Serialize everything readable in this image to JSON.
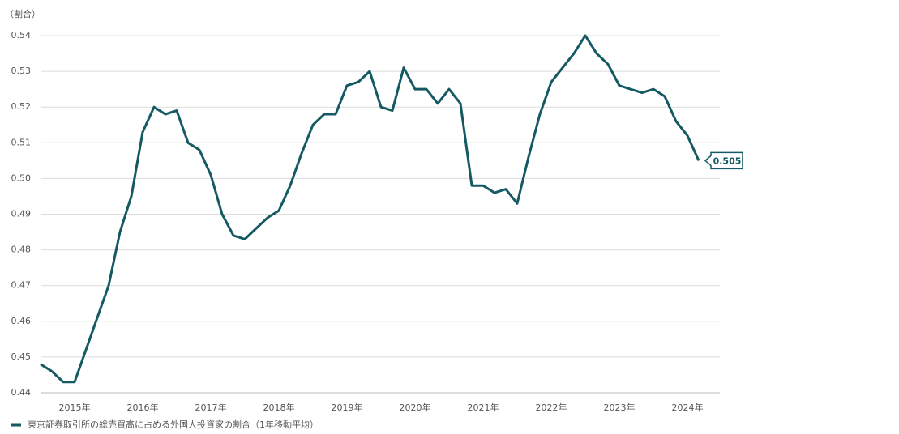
{
  "chart_data": {
    "type": "line",
    "y_label": "（割合）",
    "categories": [
      null,
      null,
      null,
      "2015年",
      null,
      null,
      null,
      null,
      null,
      "2016年",
      null,
      null,
      null,
      null,
      null,
      "2017年",
      null,
      null,
      null,
      null,
      null,
      "2018年",
      null,
      null,
      null,
      null,
      null,
      "2019年",
      null,
      null,
      null,
      null,
      null,
      "2020年",
      null,
      null,
      null,
      null,
      null,
      "2021年",
      null,
      null,
      null,
      null,
      null,
      "2022年",
      null,
      null,
      null,
      null,
      null,
      "2023年",
      null,
      null,
      null,
      null,
      null,
      "2024年",
      null
    ],
    "series": [
      {
        "name": "東京証券取引所の総売買高に占める外国人投資家の割合（1年移動平均）",
        "color": "#155a63",
        "values": [
          0.448,
          0.446,
          0.443,
          0.443,
          0.452,
          0.461,
          0.47,
          0.485,
          0.495,
          0.513,
          0.52,
          0.518,
          0.519,
          0.51,
          0.508,
          0.501,
          0.49,
          0.484,
          0.483,
          0.486,
          0.489,
          0.491,
          0.498,
          0.507,
          0.515,
          0.518,
          0.518,
          0.526,
          0.527,
          0.53,
          0.52,
          0.519,
          0.531,
          0.525,
          0.525,
          0.521,
          0.525,
          0.521,
          0.498,
          0.498,
          0.496,
          0.497,
          0.493,
          0.506,
          0.518,
          0.527,
          0.531,
          0.535,
          0.54,
          0.535,
          0.532,
          0.526,
          0.525,
          0.524,
          0.525,
          0.523,
          0.516,
          0.512,
          0.505
        ]
      }
    ],
    "ylim": [
      0.44,
      0.54
    ],
    "yticks": [
      0.44,
      0.45,
      0.46,
      0.47,
      0.48,
      0.49,
      {
        "value": 0.5,
        "label": "0.50"
      },
      0.51,
      0.52,
      0.53,
      0.54
    ],
    "grid": true
  }
}
